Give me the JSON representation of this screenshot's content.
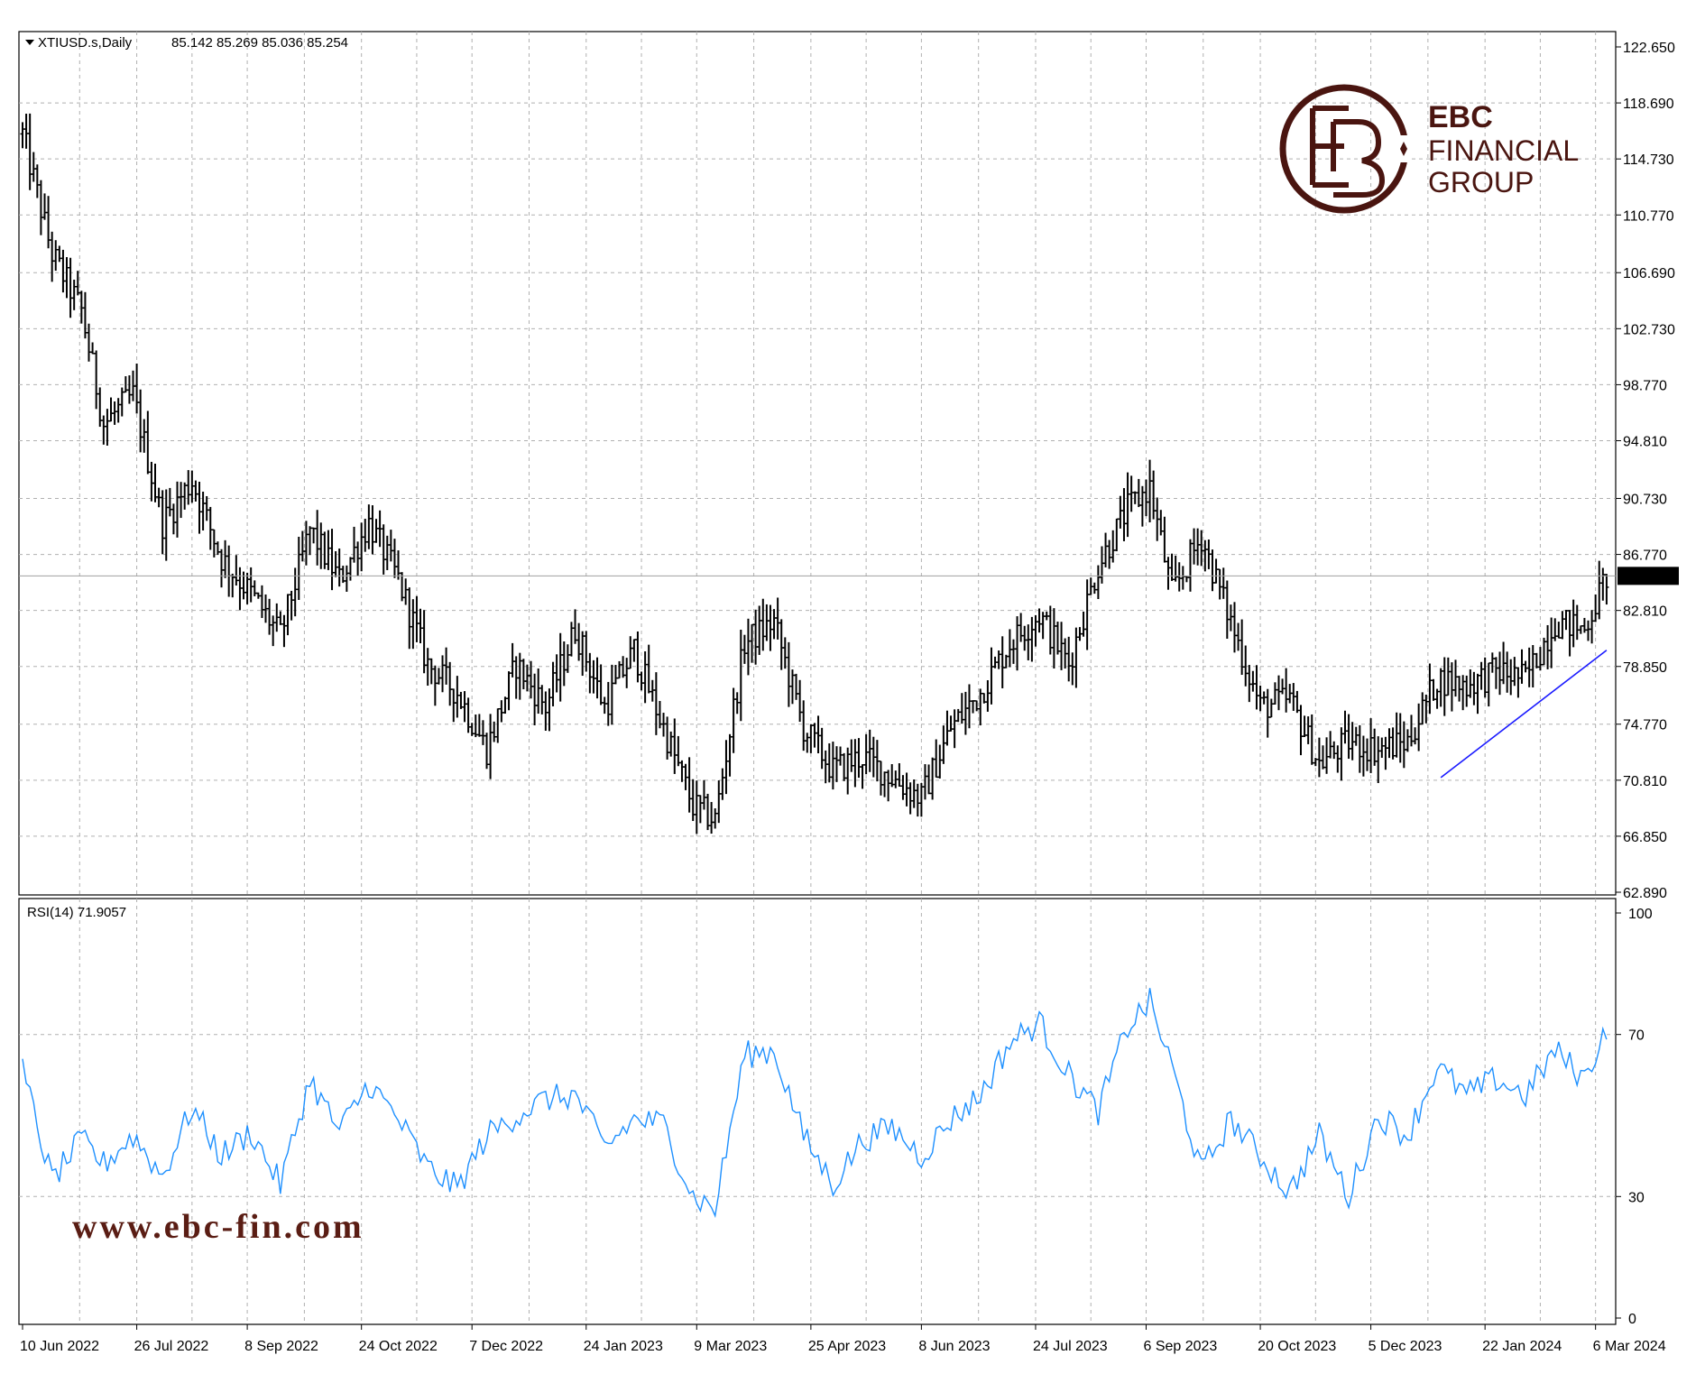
{
  "window": {
    "title": "XTIUSD.s,Daily",
    "ohlc_text": "85.142 85.269 85.036 85.254"
  },
  "logo": {
    "line1": "EBC",
    "line2": "FINANCIAL",
    "line3": "GROUP",
    "color": "#4a1510"
  },
  "website": "www.ebc-fin.com",
  "indicator": {
    "label": "RSI(14) 71.9057",
    "color": "#1e90ff"
  },
  "colors": {
    "candles": "#000000",
    "trendline": "#1a1aff",
    "grid": "#b0b0b0",
    "current_price_line": "#a0a0a0"
  },
  "chart_data": [
    {
      "type": "bar",
      "subtype": "ohlc",
      "symbol": "XTIUSD.s",
      "timeframe": "Daily",
      "current_price": 85.254,
      "current_price_label": "85.254",
      "y_ticks": [
        "122.650",
        "118.690",
        "114.730",
        "110.770",
        "106.690",
        "102.730",
        "98.770",
        "94.810",
        "90.730",
        "86.770",
        "82.810",
        "78.850",
        "74.770",
        "70.810",
        "66.850",
        "62.890"
      ],
      "ylim": [
        62.89,
        122.65
      ],
      "x_ticks": [
        "10 Jun 2022",
        "26 Jul 2022",
        "8 Sep 2022",
        "24 Oct 2022",
        "7 Dec 2022",
        "24 Jan 2023",
        "9 Mar 2023",
        "25 Apr 2023",
        "8 Jun 2023",
        "24 Jul 2023",
        "6 Sep 2023",
        "20 Oct 2023",
        "5 Dec 2023",
        "22 Jan 2024",
        "6 Mar 2024"
      ],
      "close_path": [
        {
          "bar": 0,
          "close": 116.5
        },
        {
          "bar": 8,
          "close": 108.0
        },
        {
          "bar": 16,
          "close": 104.0
        },
        {
          "bar": 22,
          "close": 96.0
        },
        {
          "bar": 30,
          "close": 98.0
        },
        {
          "bar": 38,
          "close": 89.0
        },
        {
          "bar": 46,
          "close": 92.0
        },
        {
          "bar": 54,
          "close": 86.5
        },
        {
          "bar": 62,
          "close": 84.0
        },
        {
          "bar": 70,
          "close": 81.0
        },
        {
          "bar": 78,
          "close": 88.5
        },
        {
          "bar": 86,
          "close": 85.0
        },
        {
          "bar": 94,
          "close": 89.0
        },
        {
          "bar": 102,
          "close": 85.0
        },
        {
          "bar": 110,
          "close": 79.0
        },
        {
          "bar": 118,
          "close": 77.0
        },
        {
          "bar": 126,
          "close": 73.0
        },
        {
          "bar": 134,
          "close": 79.0
        },
        {
          "bar": 142,
          "close": 76.0
        },
        {
          "bar": 150,
          "close": 81.5
        },
        {
          "bar": 158,
          "close": 76.0
        },
        {
          "bar": 166,
          "close": 80.0
        },
        {
          "bar": 174,
          "close": 74.5
        },
        {
          "bar": 182,
          "close": 69.0
        },
        {
          "bar": 188,
          "close": 68.0
        },
        {
          "bar": 196,
          "close": 80.5
        },
        {
          "bar": 204,
          "close": 82.0
        },
        {
          "bar": 212,
          "close": 74.5
        },
        {
          "bar": 220,
          "close": 71.5
        },
        {
          "bar": 228,
          "close": 72.5
        },
        {
          "bar": 236,
          "close": 71.0
        },
        {
          "bar": 244,
          "close": 69.5
        },
        {
          "bar": 252,
          "close": 74.5
        },
        {
          "bar": 260,
          "close": 77.0
        },
        {
          "bar": 268,
          "close": 80.5
        },
        {
          "bar": 276,
          "close": 82.5
        },
        {
          "bar": 284,
          "close": 79.0
        },
        {
          "bar": 292,
          "close": 86.0
        },
        {
          "bar": 300,
          "close": 90.0
        },
        {
          "bar": 306,
          "close": 91.5
        },
        {
          "bar": 312,
          "close": 84.0
        },
        {
          "bar": 320,
          "close": 88.0
        },
        {
          "bar": 328,
          "close": 82.0
        },
        {
          "bar": 336,
          "close": 76.0
        },
        {
          "bar": 344,
          "close": 76.5
        },
        {
          "bar": 352,
          "close": 72.0
        },
        {
          "bar": 360,
          "close": 73.5
        },
        {
          "bar": 368,
          "close": 73.0
        },
        {
          "bar": 376,
          "close": 73.5
        },
        {
          "bar": 384,
          "close": 78.0
        },
        {
          "bar": 392,
          "close": 77.5
        },
        {
          "bar": 400,
          "close": 78.5
        },
        {
          "bar": 408,
          "close": 78.0
        },
        {
          "bar": 416,
          "close": 82.0
        },
        {
          "bar": 424,
          "close": 81.5
        },
        {
          "bar": 430,
          "close": 85.25
        }
      ],
      "trendline": {
        "from": {
          "bar": 385,
          "price": 71.0
        },
        "to": {
          "bar": 430,
          "price": 80.0
        }
      }
    },
    {
      "type": "line",
      "name": "RSI(14)",
      "ylim": [
        0,
        100
      ],
      "y_ticks": [
        "100",
        "70",
        "30",
        "0"
      ],
      "last_value": 71.9057,
      "path": [
        {
          "bar": 0,
          "rsi": 61
        },
        {
          "bar": 8,
          "rsi": 34
        },
        {
          "bar": 16,
          "rsi": 44
        },
        {
          "bar": 22,
          "rsi": 38
        },
        {
          "bar": 30,
          "rsi": 45
        },
        {
          "bar": 38,
          "rsi": 35
        },
        {
          "bar": 46,
          "rsi": 52
        },
        {
          "bar": 54,
          "rsi": 40
        },
        {
          "bar": 62,
          "rsi": 46
        },
        {
          "bar": 70,
          "rsi": 33
        },
        {
          "bar": 78,
          "rsi": 59
        },
        {
          "bar": 86,
          "rsi": 46
        },
        {
          "bar": 94,
          "rsi": 58
        },
        {
          "bar": 102,
          "rsi": 49
        },
        {
          "bar": 110,
          "rsi": 37
        },
        {
          "bar": 118,
          "rsi": 32
        },
        {
          "bar": 126,
          "rsi": 45
        },
        {
          "bar": 134,
          "rsi": 50
        },
        {
          "bar": 142,
          "rsi": 54
        },
        {
          "bar": 150,
          "rsi": 55
        },
        {
          "bar": 158,
          "rsi": 42
        },
        {
          "bar": 166,
          "rsi": 49
        },
        {
          "bar": 174,
          "rsi": 48
        },
        {
          "bar": 182,
          "rsi": 30
        },
        {
          "bar": 188,
          "rsi": 27
        },
        {
          "bar": 196,
          "rsi": 65
        },
        {
          "bar": 204,
          "rsi": 66
        },
        {
          "bar": 212,
          "rsi": 45
        },
        {
          "bar": 220,
          "rsi": 33
        },
        {
          "bar": 228,
          "rsi": 44
        },
        {
          "bar": 236,
          "rsi": 47
        },
        {
          "bar": 244,
          "rsi": 40
        },
        {
          "bar": 252,
          "rsi": 49
        },
        {
          "bar": 260,
          "rsi": 55
        },
        {
          "bar": 268,
          "rsi": 68
        },
        {
          "bar": 276,
          "rsi": 73
        },
        {
          "bar": 284,
          "rsi": 60
        },
        {
          "bar": 292,
          "rsi": 51
        },
        {
          "bar": 300,
          "rsi": 72
        },
        {
          "bar": 306,
          "rsi": 78
        },
        {
          "bar": 312,
          "rsi": 62
        },
        {
          "bar": 320,
          "rsi": 36
        },
        {
          "bar": 328,
          "rsi": 49
        },
        {
          "bar": 336,
          "rsi": 40
        },
        {
          "bar": 344,
          "rsi": 31
        },
        {
          "bar": 352,
          "rsi": 45
        },
        {
          "bar": 360,
          "rsi": 30
        },
        {
          "bar": 368,
          "rsi": 50
        },
        {
          "bar": 376,
          "rsi": 45
        },
        {
          "bar": 384,
          "rsi": 62
        },
        {
          "bar": 392,
          "rsi": 55
        },
        {
          "bar": 400,
          "rsi": 59
        },
        {
          "bar": 408,
          "rsi": 55
        },
        {
          "bar": 416,
          "rsi": 66
        },
        {
          "bar": 424,
          "rsi": 59
        },
        {
          "bar": 430,
          "rsi": 72
        }
      ]
    }
  ]
}
